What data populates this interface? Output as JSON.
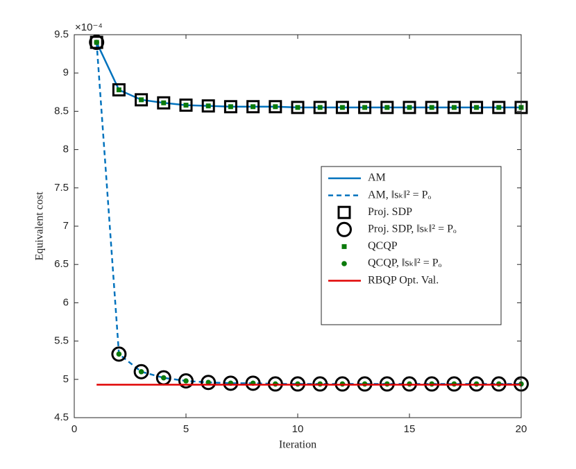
{
  "chart_data": {
    "type": "line",
    "xlabel": "Iteration",
    "ylabel": "Equivalent cost",
    "y_multiplier": "×10⁻⁴",
    "x": [
      1,
      2,
      3,
      4,
      5,
      6,
      7,
      8,
      9,
      10,
      11,
      12,
      13,
      14,
      15,
      16,
      17,
      18,
      19,
      20
    ],
    "xlim": [
      0,
      20
    ],
    "xticks": [
      0,
      5,
      10,
      15,
      20
    ],
    "ylim": [
      4.5,
      9.5
    ],
    "yticks": [
      4.5,
      5,
      5.5,
      6,
      6.5,
      7,
      7.5,
      8,
      8.5,
      9,
      9.5
    ],
    "series": [
      {
        "name": "AM",
        "color": "#0072bd",
        "style": "line",
        "values": [
          9.4,
          8.78,
          8.65,
          8.61,
          8.58,
          8.57,
          8.56,
          8.56,
          8.56,
          8.55,
          8.55,
          8.55,
          8.55,
          8.55,
          8.55,
          8.55,
          8.55,
          8.55,
          8.55,
          8.55
        ]
      },
      {
        "name": "AM, ‖sₖ‖² = Pₒ",
        "color": "#0072bd",
        "style": "dashed",
        "values": [
          9.4,
          5.33,
          5.1,
          5.02,
          4.98,
          4.96,
          4.95,
          4.95,
          4.94,
          4.94,
          4.94,
          4.94,
          4.94,
          4.94,
          4.94,
          4.94,
          4.94,
          4.94,
          4.94,
          4.94
        ]
      },
      {
        "name": "Proj. SDP",
        "color": "#000000",
        "style": "square",
        "values": [
          9.4,
          8.78,
          8.65,
          8.61,
          8.58,
          8.57,
          8.56,
          8.56,
          8.56,
          8.55,
          8.55,
          8.55,
          8.55,
          8.55,
          8.55,
          8.55,
          8.55,
          8.55,
          8.55,
          8.55
        ]
      },
      {
        "name": "Proj. SDP, ‖sₖ‖² = Pₒ",
        "color": "#000000",
        "style": "circle",
        "values": [
          9.4,
          5.33,
          5.1,
          5.02,
          4.98,
          4.96,
          4.95,
          4.95,
          4.94,
          4.94,
          4.94,
          4.94,
          4.94,
          4.94,
          4.94,
          4.94,
          4.94,
          4.94,
          4.94,
          4.94
        ]
      },
      {
        "name": "QCQP",
        "color": "#0b7a0b",
        "style": "small-square",
        "values": [
          9.4,
          8.78,
          8.65,
          8.61,
          8.58,
          8.57,
          8.56,
          8.56,
          8.56,
          8.55,
          8.55,
          8.55,
          8.55,
          8.55,
          8.55,
          8.55,
          8.55,
          8.55,
          8.55,
          8.55
        ]
      },
      {
        "name": "QCQP, ‖sₖ‖² = Pₒ",
        "color": "#0b7a0b",
        "style": "dot",
        "values": [
          9.4,
          5.33,
          5.1,
          5.02,
          4.98,
          4.96,
          4.95,
          4.95,
          4.94,
          4.94,
          4.94,
          4.94,
          4.94,
          4.94,
          4.94,
          4.94,
          4.94,
          4.94,
          4.94,
          4.94
        ]
      },
      {
        "name": "RBQP Opt. Val.",
        "color": "#e00000",
        "style": "line",
        "x": [
          1,
          20
        ],
        "values": [
          4.93,
          4.93
        ]
      }
    ]
  }
}
